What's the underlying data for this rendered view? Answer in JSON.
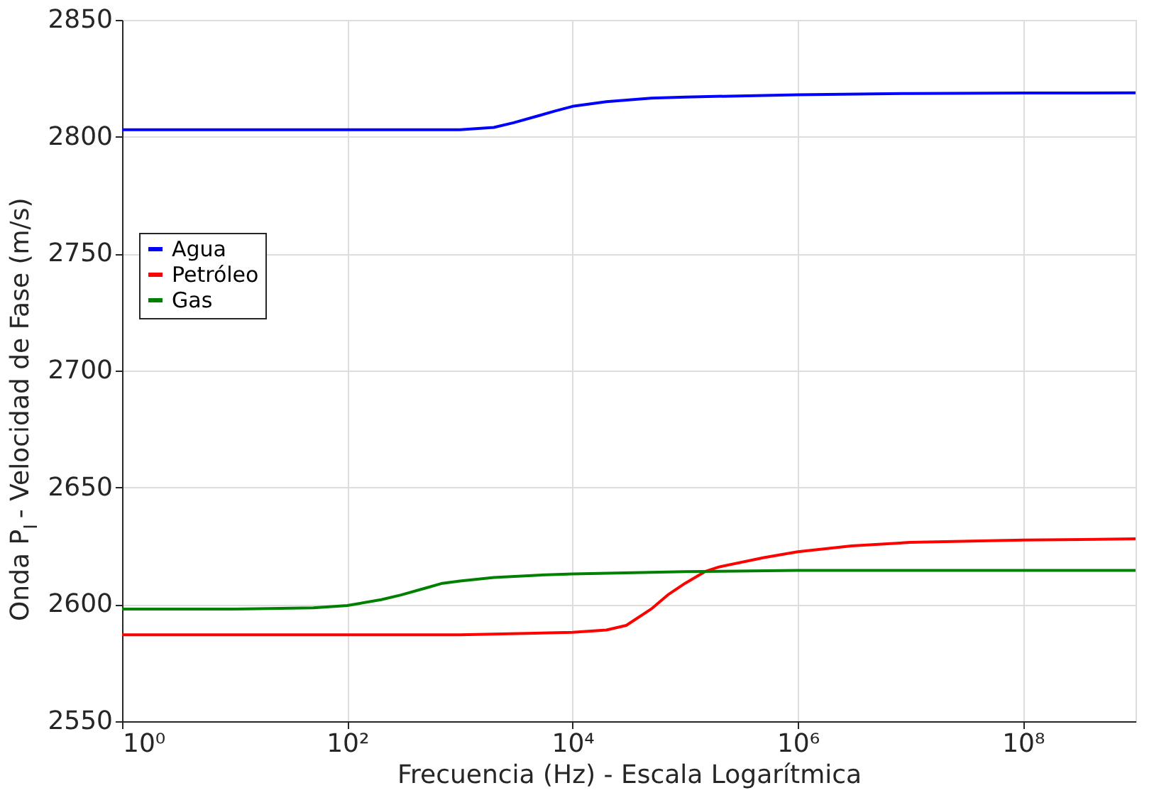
{
  "chart_data": {
    "type": "line",
    "xlabel": "Frecuencia (Hz) - Escala Logarítmica",
    "ylabel": "Onda P$_{I}$ - Velocidad de Fase (m/s)",
    "x": [
      1,
      10,
      100,
      1000,
      2000,
      3000,
      5000,
      7000,
      10000,
      20000,
      50000,
      100000,
      1000000,
      10000000,
      100000000,
      1000000000
    ],
    "series": [
      {
        "name": "Agua",
        "color": "#0000ff",
        "values": [
          2803,
          2803,
          2803,
          2803,
          2804,
          2806,
          2809,
          2811,
          2813,
          2815,
          2816.5,
          2817,
          2818,
          2818.5,
          2818.7,
          2818.8
        ]
      },
      {
        "name": "Petróleo",
        "color": "#ff0000",
        "x": [
          1,
          10,
          100,
          1000,
          10000,
          20000,
          30000,
          50000,
          70000,
          100000,
          150000,
          200000,
          500000,
          1000000,
          3000000,
          10000000,
          100000000,
          1000000000
        ],
        "values": [
          2587,
          2587,
          2587,
          2587,
          2588,
          2589,
          2591,
          2598,
          2604,
          2609,
          2614,
          2616,
          2620,
          2622.5,
          2625,
          2626.5,
          2627.5,
          2628
        ]
      },
      {
        "name": "Gas",
        "color": "#008000",
        "x": [
          1,
          10,
          50,
          100,
          200,
          300,
          500,
          700,
          1000,
          2000,
          5000,
          10000,
          100000,
          1000000,
          1000000000
        ],
        "values": [
          2598,
          2598,
          2598.5,
          2599.5,
          2602,
          2604,
          2607,
          2609,
          2610,
          2611.5,
          2612.5,
          2613,
          2614,
          2614.5,
          2614.5
        ]
      }
    ],
    "xlim": [
      1,
      1000000000
    ],
    "xticks": [
      {
        "value": 1,
        "label": "10⁰"
      },
      {
        "value": 100,
        "label": "10²"
      },
      {
        "value": 10000,
        "label": "10⁴"
      },
      {
        "value": 1000000,
        "label": "10⁶"
      },
      {
        "value": 100000000,
        "label": "10⁸"
      }
    ],
    "ylim": [
      2550,
      2850
    ],
    "yticks": [
      2550,
      2600,
      2650,
      2700,
      2750,
      2800,
      2850
    ],
    "log": "x",
    "grid": true,
    "legend": "left",
    "marker": "none",
    "line_style": "solid"
  }
}
